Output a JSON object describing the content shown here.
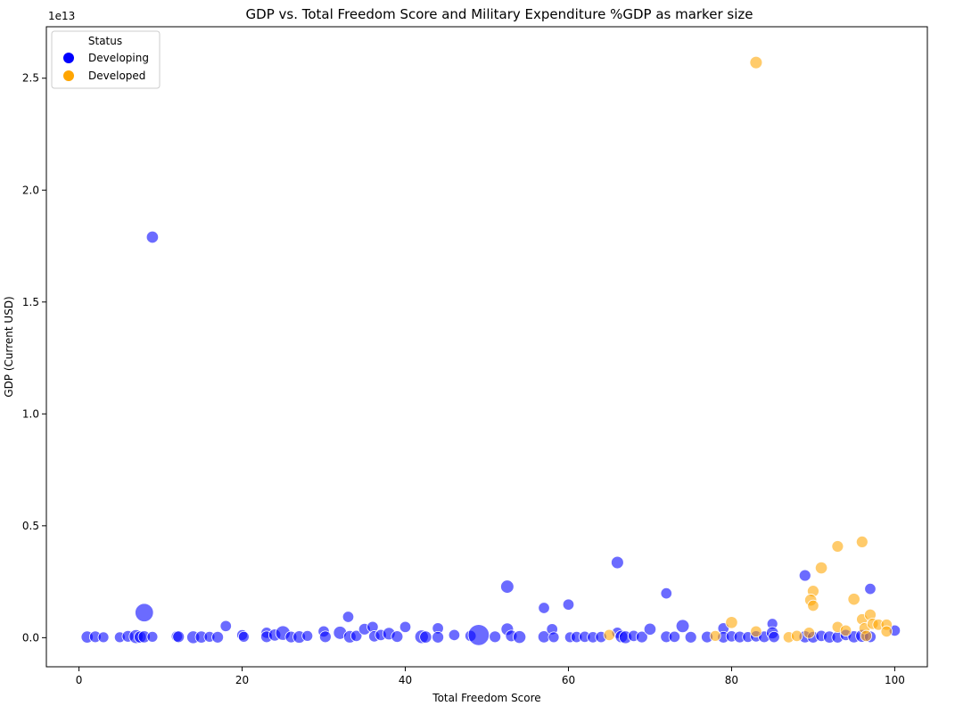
{
  "chart_data": {
    "type": "scatter",
    "title": "GDP vs. Total Freedom Score and Military Expenditure %GDP as marker size",
    "xlabel": "Total Freedom Score",
    "ylabel": "GDP (Current USD)",
    "y_offset_label": "1e13",
    "xlim": [
      -4,
      104
    ],
    "ylim": [
      -0.13,
      2.73
    ],
    "y_units": "1e13 USD",
    "xticks": [
      0,
      20,
      40,
      60,
      80,
      100
    ],
    "xtick_labels": [
      "0",
      "20",
      "40",
      "60",
      "80",
      "100"
    ],
    "yticks": [
      0.0,
      0.5,
      1.0,
      1.5,
      2.0,
      2.5
    ],
    "ytick_labels": [
      "0.0",
      "0.5",
      "1.0",
      "1.5",
      "2.0",
      "2.5"
    ],
    "grid": false,
    "legend": {
      "title": "Status",
      "placement": "top-left",
      "entries": [
        {
          "label": "Developing",
          "color": "#0000ff"
        },
        {
          "label": "Developed",
          "color": "#ffa500"
        }
      ]
    },
    "series": [
      {
        "name": "Developing",
        "color": "#0000ff",
        "points": [
          {
            "x": 1,
            "y": 0.003,
            "s": 1.5
          },
          {
            "x": 2,
            "y": 0.004,
            "s": 1.4
          },
          {
            "x": 3,
            "y": 0.002,
            "s": 1.2
          },
          {
            "x": 5,
            "y": 0.002,
            "s": 1.2
          },
          {
            "x": 6,
            "y": 0.006,
            "s": 1.4
          },
          {
            "x": 7,
            "y": 0.005,
            "s": 2.0
          },
          {
            "x": 7.5,
            "y": 0.003,
            "s": 1.5
          },
          {
            "x": 8,
            "y": 0.112,
            "s": 3.5
          },
          {
            "x": 8,
            "y": 0.004,
            "s": 1.5
          },
          {
            "x": 9,
            "y": 1.79,
            "s": 1.5
          },
          {
            "x": 9,
            "y": 0.004,
            "s": 1.2
          },
          {
            "x": 12,
            "y": 0.006,
            "s": 1.3
          },
          {
            "x": 12.2,
            "y": 0.004,
            "s": 1.4
          },
          {
            "x": 14,
            "y": 0.002,
            "s": 1.7
          },
          {
            "x": 15,
            "y": 0.003,
            "s": 1.5
          },
          {
            "x": 16,
            "y": 0.004,
            "s": 1.2
          },
          {
            "x": 17,
            "y": 0.002,
            "s": 1.4
          },
          {
            "x": 18,
            "y": 0.052,
            "s": 1.3
          },
          {
            "x": 20,
            "y": 0.012,
            "s": 1.2
          },
          {
            "x": 20.2,
            "y": 0.004,
            "s": 1.2
          },
          {
            "x": 23,
            "y": 0.022,
            "s": 1.3
          },
          {
            "x": 23,
            "y": 0.004,
            "s": 1.4
          },
          {
            "x": 24,
            "y": 0.012,
            "s": 1.5
          },
          {
            "x": 25,
            "y": 0.021,
            "s": 2.2
          },
          {
            "x": 26,
            "y": 0.003,
            "s": 1.4
          },
          {
            "x": 27,
            "y": 0.003,
            "s": 1.6
          },
          {
            "x": 28,
            "y": 0.008,
            "s": 1.2
          },
          {
            "x": 30,
            "y": 0.028,
            "s": 1.3
          },
          {
            "x": 30.2,
            "y": 0.004,
            "s": 1.4
          },
          {
            "x": 32,
            "y": 0.022,
            "s": 1.8
          },
          {
            "x": 33,
            "y": 0.093,
            "s": 1.3
          },
          {
            "x": 33.2,
            "y": 0.004,
            "s": 1.6
          },
          {
            "x": 34,
            "y": 0.008,
            "s": 1.3
          },
          {
            "x": 35,
            "y": 0.038,
            "s": 1.4
          },
          {
            "x": 36,
            "y": 0.048,
            "s": 1.3
          },
          {
            "x": 36.2,
            "y": 0.006,
            "s": 1.3
          },
          {
            "x": 37,
            "y": 0.012,
            "s": 1.3
          },
          {
            "x": 38,
            "y": 0.018,
            "s": 1.6
          },
          {
            "x": 39,
            "y": 0.005,
            "s": 1.4
          },
          {
            "x": 40,
            "y": 0.048,
            "s": 1.3
          },
          {
            "x": 42,
            "y": 0.004,
            "s": 1.9
          },
          {
            "x": 42.5,
            "y": 0.003,
            "s": 1.5
          },
          {
            "x": 44,
            "y": 0.042,
            "s": 1.3
          },
          {
            "x": 44,
            "y": 0.002,
            "s": 1.4
          },
          {
            "x": 46,
            "y": 0.012,
            "s": 1.3
          },
          {
            "x": 48,
            "y": 0.008,
            "s": 1.3
          },
          {
            "x": 49,
            "y": 0.012,
            "s": 4.6
          },
          {
            "x": 51,
            "y": 0.004,
            "s": 1.4
          },
          {
            "x": 52.5,
            "y": 0.228,
            "s": 1.8
          },
          {
            "x": 52.5,
            "y": 0.038,
            "s": 1.6
          },
          {
            "x": 53,
            "y": 0.008,
            "s": 1.4
          },
          {
            "x": 54,
            "y": 0.003,
            "s": 1.7
          },
          {
            "x": 57,
            "y": 0.133,
            "s": 1.3
          },
          {
            "x": 57,
            "y": 0.004,
            "s": 1.5
          },
          {
            "x": 58,
            "y": 0.038,
            "s": 1.3
          },
          {
            "x": 58.2,
            "y": 0.002,
            "s": 1.2
          },
          {
            "x": 60,
            "y": 0.148,
            "s": 1.3
          },
          {
            "x": 60.2,
            "y": 0.002,
            "s": 1.2
          },
          {
            "x": 61,
            "y": 0.003,
            "s": 1.3
          },
          {
            "x": 62,
            "y": 0.004,
            "s": 1.3
          },
          {
            "x": 63,
            "y": 0.002,
            "s": 1.3
          },
          {
            "x": 64,
            "y": 0.003,
            "s": 1.3
          },
          {
            "x": 66,
            "y": 0.336,
            "s": 1.6
          },
          {
            "x": 66,
            "y": 0.022,
            "s": 1.3
          },
          {
            "x": 66.5,
            "y": 0.005,
            "s": 1.6
          },
          {
            "x": 67,
            "y": 0.002,
            "s": 1.7
          },
          {
            "x": 68,
            "y": 0.008,
            "s": 1.3
          },
          {
            "x": 69,
            "y": 0.003,
            "s": 1.4
          },
          {
            "x": 70,
            "y": 0.038,
            "s": 1.5
          },
          {
            "x": 72,
            "y": 0.198,
            "s": 1.3
          },
          {
            "x": 72,
            "y": 0.004,
            "s": 1.4
          },
          {
            "x": 73,
            "y": 0.004,
            "s": 1.3
          },
          {
            "x": 74,
            "y": 0.052,
            "s": 1.8
          },
          {
            "x": 75,
            "y": 0.002,
            "s": 1.4
          },
          {
            "x": 77,
            "y": 0.003,
            "s": 1.4
          },
          {
            "x": 79,
            "y": 0.042,
            "s": 1.3
          },
          {
            "x": 79,
            "y": 0.002,
            "s": 1.4
          },
          {
            "x": 80,
            "y": 0.006,
            "s": 1.3
          },
          {
            "x": 81,
            "y": 0.003,
            "s": 1.4
          },
          {
            "x": 82,
            "y": 0.003,
            "s": 1.2
          },
          {
            "x": 83,
            "y": 0.006,
            "s": 1.3
          },
          {
            "x": 84,
            "y": 0.004,
            "s": 1.4
          },
          {
            "x": 85,
            "y": 0.062,
            "s": 1.2
          },
          {
            "x": 85,
            "y": 0.022,
            "s": 1.5
          },
          {
            "x": 85.2,
            "y": 0.003,
            "s": 1.3
          },
          {
            "x": 89,
            "y": 0.278,
            "s": 1.4
          },
          {
            "x": 89,
            "y": 0.004,
            "s": 1.5
          },
          {
            "x": 90,
            "y": 0.002,
            "s": 1.4
          },
          {
            "x": 91,
            "y": 0.008,
            "s": 1.3
          },
          {
            "x": 92,
            "y": 0.003,
            "s": 1.5
          },
          {
            "x": 93,
            "y": 0.002,
            "s": 1.4
          },
          {
            "x": 94,
            "y": 0.012,
            "s": 1.3
          },
          {
            "x": 95,
            "y": 0.004,
            "s": 1.5
          },
          {
            "x": 96,
            "y": 0.008,
            "s": 1.7
          },
          {
            "x": 97,
            "y": 0.218,
            "s": 1.3
          },
          {
            "x": 97,
            "y": 0.004,
            "s": 1.4
          },
          {
            "x": 100,
            "y": 0.032,
            "s": 1.3
          }
        ]
      },
      {
        "name": "Developed",
        "color": "#ffa500",
        "points": [
          {
            "x": 83,
            "y": 2.57,
            "s": 1.6
          },
          {
            "x": 65,
            "y": 0.012,
            "s": 1.3
          },
          {
            "x": 78,
            "y": 0.008,
            "s": 1.2
          },
          {
            "x": 80,
            "y": 0.068,
            "s": 1.5
          },
          {
            "x": 83,
            "y": 0.028,
            "s": 1.3
          },
          {
            "x": 87,
            "y": 0.002,
            "s": 1.3
          },
          {
            "x": 88,
            "y": 0.008,
            "s": 1.3
          },
          {
            "x": 89.5,
            "y": 0.022,
            "s": 1.3
          },
          {
            "x": 90,
            "y": 0.208,
            "s": 1.4
          },
          {
            "x": 89.7,
            "y": 0.168,
            "s": 1.5
          },
          {
            "x": 90,
            "y": 0.143,
            "s": 1.3
          },
          {
            "x": 91,
            "y": 0.312,
            "s": 1.5
          },
          {
            "x": 93,
            "y": 0.408,
            "s": 1.4
          },
          {
            "x": 93,
            "y": 0.048,
            "s": 1.3
          },
          {
            "x": 94,
            "y": 0.032,
            "s": 1.3
          },
          {
            "x": 95,
            "y": 0.172,
            "s": 1.5
          },
          {
            "x": 96,
            "y": 0.428,
            "s": 1.4
          },
          {
            "x": 96,
            "y": 0.082,
            "s": 1.3
          },
          {
            "x": 96.3,
            "y": 0.042,
            "s": 1.3
          },
          {
            "x": 97,
            "y": 0.102,
            "s": 1.4
          },
          {
            "x": 97.3,
            "y": 0.062,
            "s": 1.3
          },
          {
            "x": 98,
            "y": 0.058,
            "s": 1.3
          },
          {
            "x": 99,
            "y": 0.058,
            "s": 1.3
          },
          {
            "x": 99,
            "y": 0.028,
            "s": 1.3
          },
          {
            "x": 96.5,
            "y": 0.008,
            "s": 1.3
          }
        ]
      }
    ]
  }
}
